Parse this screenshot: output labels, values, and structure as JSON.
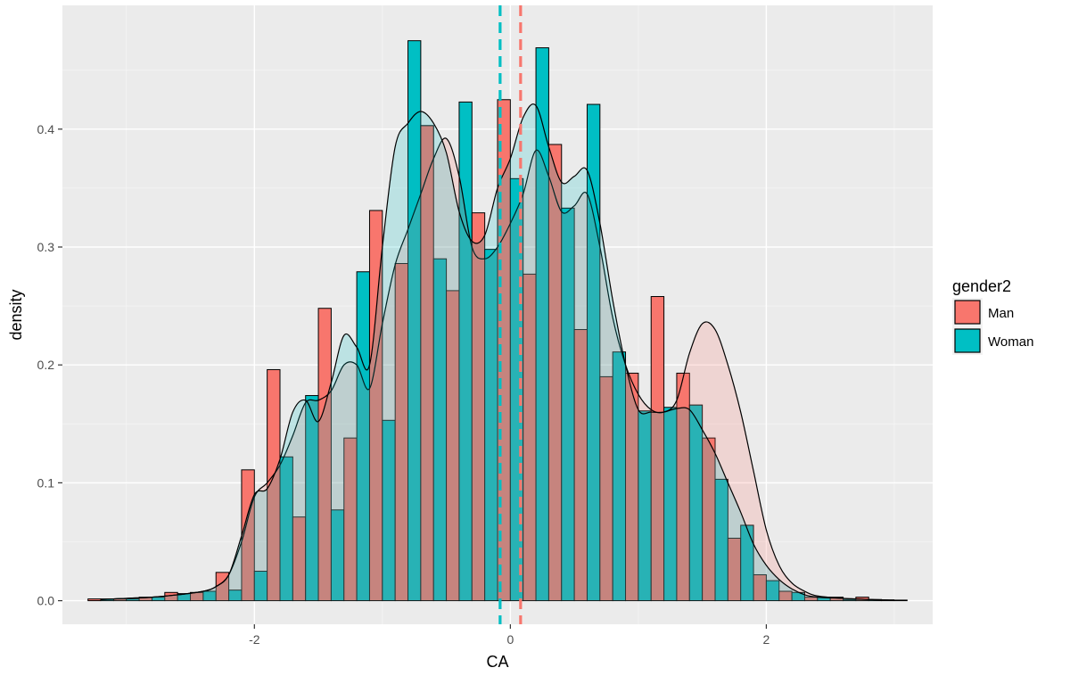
{
  "chart_data": {
    "type": "histogram",
    "xlabel": "CA",
    "ylabel": "density",
    "xlim": [
      -3.5,
      3.3
    ],
    "ylim": [
      -0.02,
      0.505
    ],
    "x_ticks": [
      -2,
      0,
      2
    ],
    "x_tick_labels": [
      "-2",
      "0",
      "2"
    ],
    "y_ticks": [
      0.0,
      0.1,
      0.2,
      0.3,
      0.4
    ],
    "y_tick_labels": [
      "0.0",
      "0.1",
      "0.2",
      "0.3",
      "0.4"
    ],
    "grid": true,
    "bin_width": 0.2,
    "bin_centers": [
      -3.2,
      -3.0,
      -2.8,
      -2.6,
      -2.4,
      -2.2,
      -2.0,
      -1.8,
      -1.6,
      -1.4,
      -1.2,
      -1.0,
      -0.8,
      -0.6,
      -0.4,
      -0.2,
      0.0,
      0.2,
      0.4,
      0.6,
      0.8,
      1.0,
      1.2,
      1.4,
      1.6,
      1.8,
      2.0,
      2.2,
      2.4,
      2.6,
      2.8,
      3.0
    ],
    "legend": {
      "title": "gender2",
      "position": "right",
      "entries": [
        "Man",
        "Woman"
      ]
    },
    "series": [
      {
        "name": "Man",
        "color": "#F8766D",
        "values": [
          0.0015,
          0.0015,
          0.003,
          0.007,
          0.007,
          0.024,
          0.111,
          0.196,
          0.071,
          0.248,
          0.138,
          0.331,
          0.286,
          0.403,
          0.263,
          0.329,
          0.425,
          0.277,
          0.387,
          0.23,
          0.19,
          0.193,
          0.258,
          0.193,
          0.138,
          0.053,
          0.022,
          0.008,
          0.003,
          0.003,
          0.003,
          0.0005
        ],
        "density_x": [
          -3.2,
          -3.0,
          -2.8,
          -2.6,
          -2.4,
          -2.3,
          -2.2,
          -2.1,
          -2.0,
          -1.9,
          -1.8,
          -1.7,
          -1.6,
          -1.5,
          -1.4,
          -1.3,
          -1.2,
          -1.1,
          -1.0,
          -0.9,
          -0.8,
          -0.7,
          -0.6,
          -0.5,
          -0.4,
          -0.3,
          -0.2,
          -0.1,
          0.0,
          0.1,
          0.2,
          0.3,
          0.4,
          0.5,
          0.6,
          0.7,
          0.8,
          0.9,
          1.0,
          1.1,
          1.2,
          1.3,
          1.4,
          1.5,
          1.6,
          1.7,
          1.8,
          1.9,
          2.0,
          2.1,
          2.2,
          2.3,
          2.4,
          2.6,
          2.8,
          3.0
        ],
        "density_y": [
          0.001,
          0.002,
          0.003,
          0.005,
          0.008,
          0.012,
          0.022,
          0.05,
          0.088,
          0.1,
          0.115,
          0.14,
          0.168,
          0.17,
          0.178,
          0.2,
          0.2,
          0.18,
          0.235,
          0.285,
          0.315,
          0.345,
          0.375,
          0.392,
          0.36,
          0.3,
          0.29,
          0.3,
          0.32,
          0.345,
          0.382,
          0.36,
          0.33,
          0.335,
          0.345,
          0.3,
          0.24,
          0.2,
          0.175,
          0.162,
          0.16,
          0.17,
          0.21,
          0.235,
          0.23,
          0.2,
          0.16,
          0.11,
          0.06,
          0.03,
          0.015,
          0.008,
          0.004,
          0.002,
          0.001,
          0.0005
        ],
        "mean": 0.08
      },
      {
        "name": "Woman",
        "color": "#00BFC4",
        "values": [
          0.0015,
          0.0015,
          0.003,
          0.006,
          0.008,
          0.009,
          0.025,
          0.122,
          0.174,
          0.077,
          0.279,
          0.153,
          0.475,
          0.29,
          0.423,
          0.298,
          0.358,
          0.469,
          0.333,
          0.421,
          0.211,
          0.161,
          0.164,
          0.166,
          0.103,
          0.064,
          0.017,
          0.007,
          0.003,
          0.001,
          0.001,
          0.0005
        ],
        "density_x": [
          -3.2,
          -3.0,
          -2.8,
          -2.6,
          -2.4,
          -2.3,
          -2.2,
          -2.1,
          -2.0,
          -1.9,
          -1.8,
          -1.7,
          -1.6,
          -1.5,
          -1.4,
          -1.3,
          -1.2,
          -1.1,
          -1.0,
          -0.9,
          -0.8,
          -0.7,
          -0.6,
          -0.5,
          -0.4,
          -0.3,
          -0.2,
          -0.1,
          0.0,
          0.1,
          0.2,
          0.3,
          0.4,
          0.5,
          0.6,
          0.7,
          0.8,
          0.9,
          1.0,
          1.1,
          1.2,
          1.3,
          1.4,
          1.5,
          1.6,
          1.7,
          1.8,
          1.9,
          2.0,
          2.1,
          2.2,
          2.3,
          2.4,
          2.6,
          2.8,
          3.0
        ],
        "density_y": [
          0.001,
          0.002,
          0.003,
          0.005,
          0.008,
          0.012,
          0.022,
          0.055,
          0.09,
          0.095,
          0.12,
          0.16,
          0.17,
          0.152,
          0.185,
          0.225,
          0.215,
          0.2,
          0.3,
          0.385,
          0.405,
          0.415,
          0.405,
          0.38,
          0.33,
          0.305,
          0.31,
          0.35,
          0.375,
          0.41,
          0.42,
          0.385,
          0.355,
          0.36,
          0.365,
          0.32,
          0.255,
          0.2,
          0.162,
          0.16,
          0.16,
          0.163,
          0.162,
          0.145,
          0.125,
          0.1,
          0.075,
          0.048,
          0.03,
          0.018,
          0.01,
          0.005,
          0.003,
          0.002,
          0.001,
          0.0005
        ],
        "mean": -0.08
      }
    ]
  }
}
